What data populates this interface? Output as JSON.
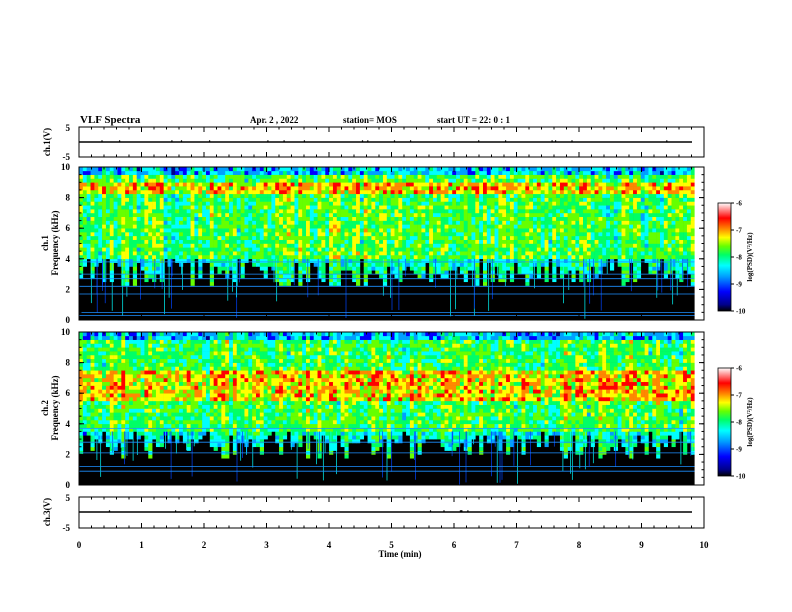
{
  "header": {
    "title": "VLF Spectra",
    "date": "Apr. 2  , 2022",
    "station": "station= MOS",
    "start": "start  UT  =   22: 0  : 1"
  },
  "colors": {
    "spectrum": [
      "#000000",
      "#00008b",
      "#0000ff",
      "#00a0ff",
      "#00ffff",
      "#00ff66",
      "#66ff00",
      "#ffff00",
      "#ff8800",
      "#ff0000",
      "#ffffff"
    ]
  },
  "chart_data": [
    {
      "type": "line",
      "id": "ch1-voltage",
      "ylabel": "ch.1(V)",
      "ylim": [
        -5,
        5
      ],
      "yticks": [
        "5",
        "-5"
      ],
      "x": [
        0,
        10
      ],
      "y": [
        0,
        0
      ]
    },
    {
      "type": "heatmap",
      "id": "ch1-spectrogram",
      "ylabel": "ch.1\nFrequency (kHz)",
      "ylabel_lines": [
        "ch.1",
        "Frequency (kHz)"
      ],
      "ylim": [
        0,
        10
      ],
      "yticks": [
        "0",
        "2",
        "4",
        "6",
        "8",
        "10"
      ],
      "xlim": [
        0,
        9.85
      ],
      "signal_band_khz": [
        4,
        10
      ],
      "peak_band_khz": [
        8.2,
        9.0
      ],
      "lines_khz": [
        0.3,
        0.5,
        1.7,
        2.2,
        2.7,
        3.0,
        3.8
      ],
      "colorbar": {
        "label": "log(PSD)(V²/Hz)",
        "range": [
          -10,
          -6
        ],
        "ticks": [
          "-6",
          "-7",
          "-8",
          "-9",
          "-10"
        ]
      }
    },
    {
      "type": "heatmap",
      "id": "ch2-spectrogram",
      "ylabel": "ch.2\nFrequency (kHz)",
      "ylabel_lines": [
        "ch.2",
        "Frequency (kHz)"
      ],
      "ylim": [
        0,
        10
      ],
      "yticks": [
        "0",
        "2",
        "4",
        "6",
        "8",
        "10"
      ],
      "xlim": [
        0,
        9.85
      ],
      "signal_band_khz": [
        3.5,
        10
      ],
      "peak_band_khz": [
        5.5,
        7.5
      ],
      "lines_khz": [
        0.9,
        1.2,
        2.1,
        2.8,
        3.7
      ],
      "colorbar": {
        "label": "log(PSD)(V²/Hz)",
        "range": [
          -10,
          -6
        ],
        "ticks": [
          "-6",
          "-7",
          "-8",
          "-9",
          "-10"
        ]
      }
    },
    {
      "type": "line",
      "id": "ch3-voltage",
      "ylabel": "ch.3(V)",
      "ylim": [
        -5,
        5
      ],
      "yticks": [
        "5",
        "-5"
      ],
      "x": [
        0,
        10
      ],
      "y": [
        0,
        0
      ]
    }
  ],
  "xaxis": {
    "label": "Time  (min)",
    "range": [
      0,
      10
    ],
    "ticks": [
      "0",
      "1",
      "2",
      "3",
      "4",
      "5",
      "6",
      "7",
      "8",
      "9",
      "10"
    ]
  }
}
